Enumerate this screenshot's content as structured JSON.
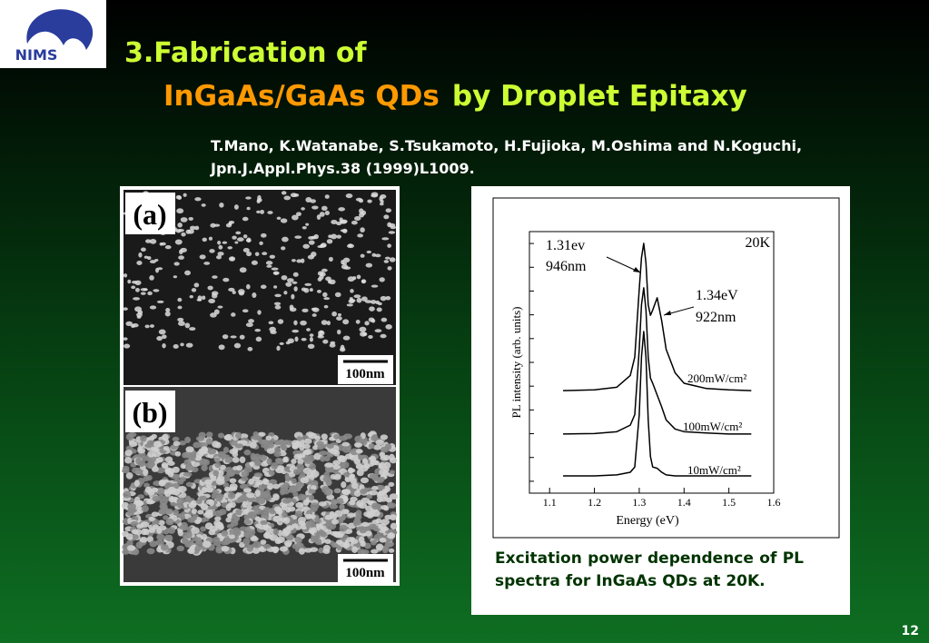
{
  "logo": {
    "text": "NIMS"
  },
  "header": {
    "title_line1": "3.Fabrication of",
    "title_highlight": "InGaAs/GaAs QDs",
    "title_rest": "by Droplet Epitaxy",
    "citation": [
      "T.Mano, K.Watanabe, S.Tsukamoto, H.Fujioka, M.Oshima and N.Koguchi,",
      "Jpn.J.Appl.Phys.38 (1999)L1009."
    ]
  },
  "images": [
    {
      "label": "(a)",
      "scale_bar": "100nm"
    },
    {
      "label": "(b)",
      "scale_bar": "100nm"
    }
  ],
  "plot": {
    "type": "line",
    "x_label": "Energy (eV)",
    "y_label": "PL intensity (arb. units)",
    "color": "#000000",
    "x": [
      1.13,
      1.2,
      1.25,
      1.28,
      1.29,
      1.3,
      1.305,
      1.31,
      1.315,
      1.32,
      1.325,
      1.33,
      1.34,
      1.35,
      1.36,
      1.38,
      1.4,
      1.45,
      1.5,
      1.55
    ],
    "xlim": [
      1.055,
      1.6
    ],
    "ylim": [
      0,
      100
    ],
    "xticks": [
      1.1,
      1.2,
      1.3,
      1.4,
      1.5,
      1.6
    ],
    "annotations": [
      "20K",
      "1.31ev",
      "946nm",
      "1.34eV",
      "922nm"
    ],
    "series": [
      {
        "name": "200mW/cm²",
        "values": [
          39.2,
          39.5,
          40.5,
          45,
          52,
          78,
          90,
          95.5,
          88,
          72,
          68,
          70,
          74.7,
          66,
          55,
          46,
          42,
          40,
          39.5,
          39.2
        ]
      },
      {
        "name": "100mW/cm²",
        "values": [
          22.6,
          22.8,
          23.5,
          26,
          30,
          55,
          72,
          78.5,
          70,
          52,
          44,
          42,
          37.5,
          33,
          28,
          24.5,
          23.5,
          23,
          22.6,
          22.6
        ]
      },
      {
        "name": "10mW/cm²",
        "values": [
          6.6,
          6.6,
          7,
          8,
          10,
          30,
          52,
          61.8,
          52,
          28,
          14,
          10,
          9.5,
          8,
          7,
          6.6,
          6.6,
          6.6,
          6.6,
          6.6
        ]
      }
    ]
  },
  "caption": "Excitation power dependence of PL spectra for InGaAs QDs at 20K.",
  "page_number": "12"
}
